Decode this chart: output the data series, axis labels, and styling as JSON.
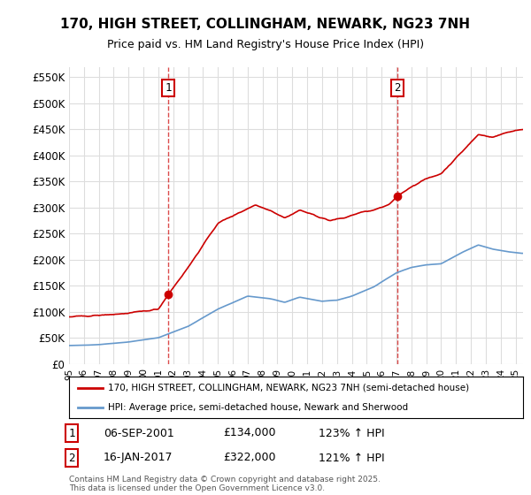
{
  "title": "170, HIGH STREET, COLLINGHAM, NEWARK, NG23 7NH",
  "subtitle": "Price paid vs. HM Land Registry's House Price Index (HPI)",
  "property_label": "170, HIGH STREET, COLLINGHAM, NEWARK, NG23 7NH (semi-detached house)",
  "hpi_label": "HPI: Average price, semi-detached house, Newark and Sherwood",
  "property_color": "#cc0000",
  "hpi_color": "#6699cc",
  "background_color": "#ffffff",
  "grid_color": "#dddddd",
  "ylim": [
    0,
    570000
  ],
  "yticks": [
    0,
    50000,
    100000,
    150000,
    200000,
    250000,
    300000,
    350000,
    400000,
    450000,
    500000,
    550000
  ],
  "ytick_labels": [
    "£0",
    "£50K",
    "£100K",
    "£150K",
    "£200K",
    "£250K",
    "£300K",
    "£350K",
    "£400K",
    "£450K",
    "£500K",
    "£550K"
  ],
  "sale1_date": "06-SEP-2001",
  "sale1_price": "£134,000",
  "sale1_hpi": "123% ↑ HPI",
  "sale1_x": 2001.68,
  "sale1_y": 134000,
  "sale2_date": "16-JAN-2017",
  "sale2_price": "£322,000",
  "sale2_hpi": "121% ↑ HPI",
  "sale2_x": 2017.04,
  "sale2_y": 322000,
  "footer": "Contains HM Land Registry data © Crown copyright and database right 2025.\nThis data is licensed under the Open Government Licence v3.0.",
  "xmin": 1995,
  "xmax": 2025.5,
  "hpi_pts": [
    [
      1995.0,
      35000
    ],
    [
      1997.0,
      37000
    ],
    [
      1999.0,
      42000
    ],
    [
      2001.0,
      50000
    ],
    [
      2003.0,
      72000
    ],
    [
      2005.0,
      105000
    ],
    [
      2007.0,
      130000
    ],
    [
      2008.5,
      125000
    ],
    [
      2009.5,
      118000
    ],
    [
      2010.5,
      128000
    ],
    [
      2012.0,
      120000
    ],
    [
      2013.0,
      122000
    ],
    [
      2014.0,
      130000
    ],
    [
      2015.5,
      148000
    ],
    [
      2017.0,
      175000
    ],
    [
      2018.0,
      185000
    ],
    [
      2019.0,
      190000
    ],
    [
      2020.0,
      192000
    ],
    [
      2021.5,
      215000
    ],
    [
      2022.5,
      228000
    ],
    [
      2023.5,
      220000
    ],
    [
      2024.5,
      215000
    ],
    [
      2025.4,
      212000
    ]
  ],
  "prop_pts": [
    [
      1995.0,
      90000
    ],
    [
      1997.0,
      93000
    ],
    [
      1999.0,
      97000
    ],
    [
      2001.0,
      105000
    ],
    [
      2001.68,
      134000
    ],
    [
      2003.0,
      185000
    ],
    [
      2005.0,
      270000
    ],
    [
      2007.5,
      305000
    ],
    [
      2008.5,
      295000
    ],
    [
      2009.5,
      280000
    ],
    [
      2010.5,
      295000
    ],
    [
      2011.5,
      285000
    ],
    [
      2012.5,
      275000
    ],
    [
      2013.5,
      280000
    ],
    [
      2014.5,
      290000
    ],
    [
      2015.5,
      295000
    ],
    [
      2016.5,
      305000
    ],
    [
      2017.04,
      322000
    ],
    [
      2018.0,
      340000
    ],
    [
      2019.0,
      355000
    ],
    [
      2020.0,
      365000
    ],
    [
      2021.5,
      410000
    ],
    [
      2022.5,
      440000
    ],
    [
      2023.5,
      435000
    ],
    [
      2024.5,
      445000
    ],
    [
      2025.4,
      450000
    ]
  ]
}
